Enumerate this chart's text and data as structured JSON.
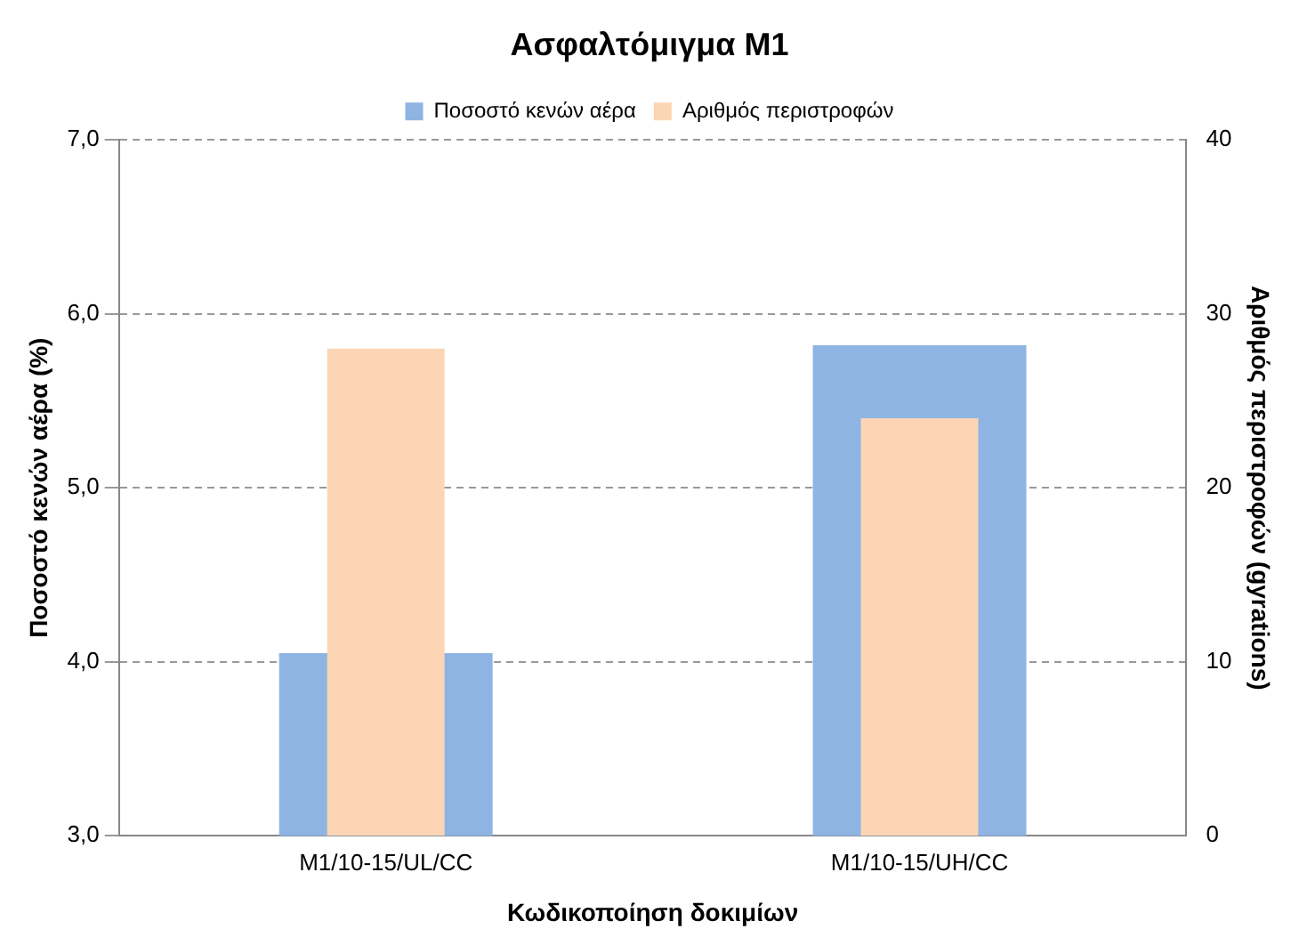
{
  "chart_data": {
    "type": "bar",
    "title": "Ασφαλτόμιγμα Μ1",
    "xlabel": "Κωδικοποίηση δοκιμίων",
    "ylabel": "Ποσοστό κενών αέρα (%)",
    "y2label": "Αριθμός περιστροφών (gyrations)",
    "categories": [
      "M1/10-15/UL/CC",
      "M1/10-15/UH/CC"
    ],
    "series": [
      {
        "name": "Ποσοστό κενών αέρα",
        "color": "#8eb4e3",
        "values": [
          4.05,
          5.82
        ]
      },
      {
        "name": "Αριθμός περιστροφών",
        "color": "#fcd5b5",
        "values": [
          28,
          24
        ],
        "axis": "y2"
      }
    ],
    "ylim": [
      3,
      7
    ],
    "yticks": [
      {
        "value": 3,
        "label": "3,0"
      },
      {
        "value": 4,
        "label": "4,0"
      },
      {
        "value": 5,
        "label": "5,0"
      },
      {
        "value": 6,
        "label": "6,0"
      },
      {
        "value": 7,
        "label": "7,0"
      }
    ],
    "y2lim": [
      0,
      40
    ],
    "y2ticks": [
      0,
      10,
      20,
      30,
      40
    ],
    "grid": "y",
    "legend": "top"
  }
}
